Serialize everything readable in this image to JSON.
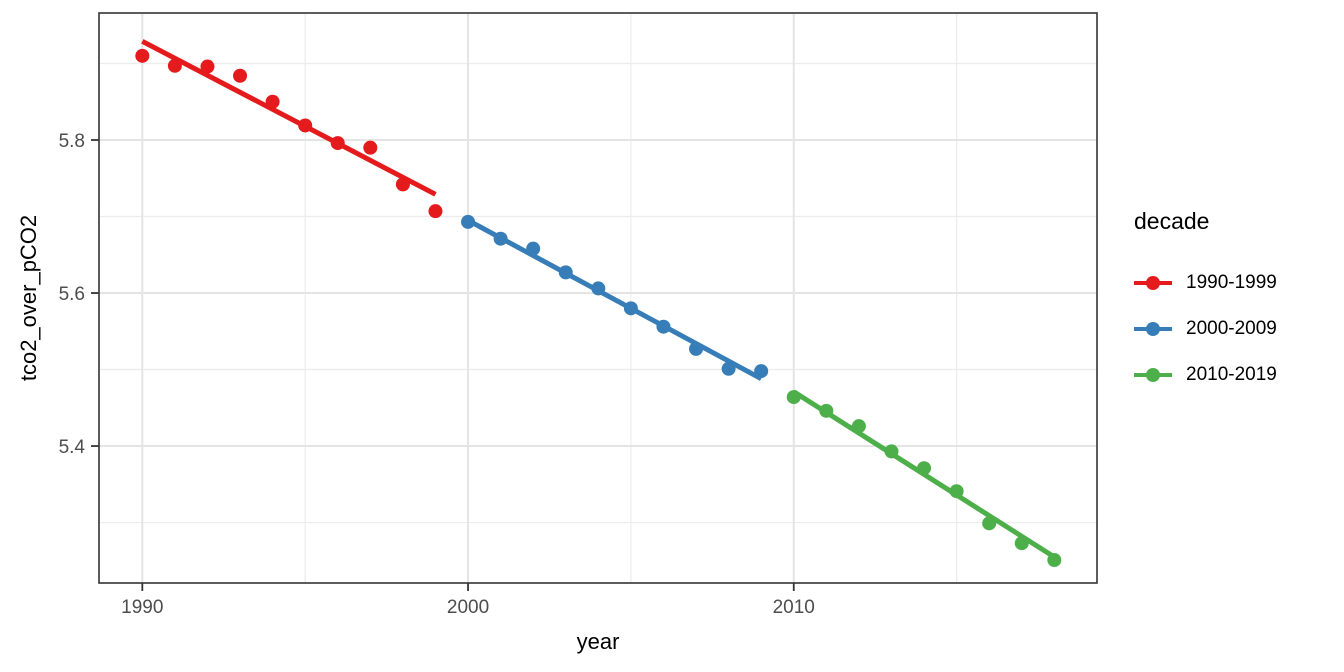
{
  "chart_data": {
    "type": "scatter",
    "title": "",
    "xlabel": "year",
    "ylabel": "tco2_over_pCO2",
    "xlim": [
      1988.67,
      2019.31
    ],
    "ylim": [
      5.221,
      5.966
    ],
    "grid": true,
    "x_ticks": {
      "major": [
        1990,
        2000,
        2010
      ],
      "major_labels": [
        "1990",
        "2000",
        "2010"
      ],
      "minor": [
        1995,
        2005,
        2015
      ]
    },
    "y_ticks": {
      "major": [
        5.4,
        5.6,
        5.8
      ],
      "major_labels": [
        "5.4",
        "5.6",
        "5.8"
      ],
      "minor": [
        5.3,
        5.5,
        5.7,
        5.9
      ]
    },
    "legend": {
      "title": "decade",
      "position": "right"
    },
    "series": [
      {
        "name": "1990-1999",
        "color": "#E41A1C",
        "x": [
          1990,
          1991,
          1992,
          1993,
          1994,
          1995,
          1996,
          1997,
          1998,
          1999
        ],
        "y": [
          5.91,
          5.897,
          5.896,
          5.884,
          5.85,
          5.819,
          5.796,
          5.79,
          5.742,
          5.707
        ],
        "trend": {
          "x": [
            1990,
            1999
          ],
          "y": [
            5.929,
            5.729
          ]
        }
      },
      {
        "name": "2000-2009",
        "color": "#377EB8",
        "x": [
          2000,
          2001,
          2002,
          2003,
          2004,
          2005,
          2006,
          2007,
          2008,
          2009
        ],
        "y": [
          5.693,
          5.671,
          5.658,
          5.627,
          5.606,
          5.58,
          5.556,
          5.527,
          5.501,
          5.498
        ],
        "trend": {
          "x": [
            2000,
            2009
          ],
          "y": [
            5.695,
            5.488
          ]
        }
      },
      {
        "name": "2010-2019",
        "color": "#4DAF4A",
        "x": [
          2010,
          2011,
          2012,
          2013,
          2014,
          2015,
          2016,
          2017,
          2018
        ],
        "y": [
          5.464,
          5.446,
          5.426,
          5.393,
          5.371,
          5.341,
          5.299,
          5.273,
          5.251
        ],
        "trend": {
          "x": [
            2010,
            2018
          ],
          "y": [
            5.471,
            5.255
          ]
        }
      }
    ]
  },
  "colors": {
    "panel_border": "#343434",
    "grid_major": "#e4e4e4",
    "grid_minor": "#ececec",
    "tick_mark": "#333333",
    "tick_text": "#4d4d4d",
    "title_text": "#000000",
    "background": "#ffffff"
  }
}
